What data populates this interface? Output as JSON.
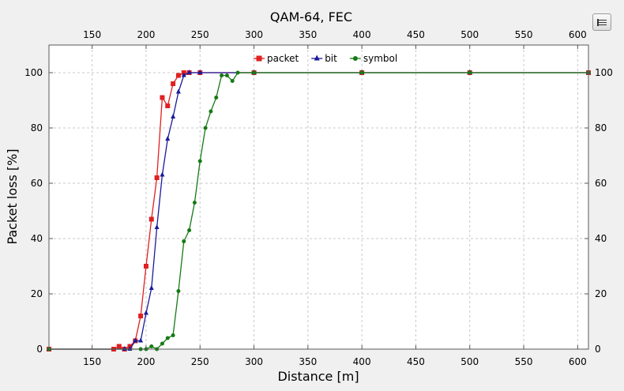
{
  "chart_data": {
    "type": "line",
    "title": "QAM-64, FEC",
    "xlabel": "Distance [m]",
    "ylabel": "Packet loss [%]",
    "xlim": [
      110,
      610
    ],
    "ylim": [
      0,
      110
    ],
    "xticks": [
      150,
      200,
      250,
      300,
      350,
      400,
      450,
      500,
      550,
      600
    ],
    "yticks": [
      0,
      20,
      40,
      60,
      80,
      100
    ],
    "grid": true,
    "legend_position": "top-center",
    "series": [
      {
        "name": "packet",
        "color": "#e02020",
        "marker": "square",
        "x": [
          110,
          170,
          175,
          180,
          185,
          190,
          195,
          200,
          205,
          210,
          215,
          220,
          225,
          230,
          235,
          240,
          250,
          300,
          400,
          500,
          610
        ],
        "y": [
          0,
          0,
          1,
          0,
          1,
          3,
          12,
          30,
          47,
          62,
          91,
          88,
          96,
          99,
          100,
          100,
          100,
          100,
          100,
          100,
          100
        ]
      },
      {
        "name": "bit",
        "color": "#1a1a9a",
        "marker": "triangle",
        "x": [
          110,
          180,
          185,
          190,
          195,
          200,
          205,
          210,
          215,
          220,
          225,
          230,
          235,
          240,
          250,
          300,
          400,
          500,
          610
        ],
        "y": [
          0,
          0,
          0,
          3,
          3,
          13,
          22,
          44,
          63,
          76,
          84,
          93,
          99,
          100,
          100,
          100,
          100,
          100,
          100
        ]
      },
      {
        "name": "symbol",
        "color": "#157a15",
        "marker": "circle",
        "x": [
          110,
          195,
          200,
          205,
          210,
          215,
          220,
          225,
          230,
          235,
          240,
          245,
          250,
          255,
          260,
          265,
          270,
          275,
          280,
          285,
          300,
          400,
          500,
          610
        ],
        "y": [
          0,
          0,
          0,
          1,
          0,
          2,
          4,
          5,
          21,
          39,
          43,
          53,
          68,
          80,
          86,
          91,
          99,
          99,
          97,
          100,
          100,
          100,
          100,
          100
        ]
      }
    ]
  },
  "toolbar": {
    "icon": "list-menu-icon"
  }
}
